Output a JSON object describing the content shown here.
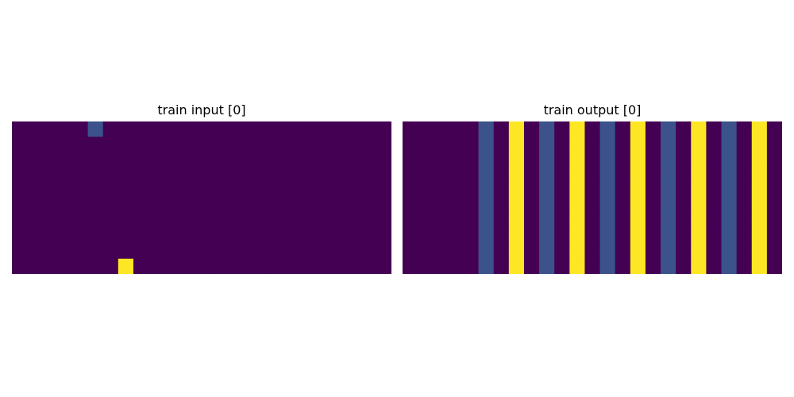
{
  "chart_data": [
    {
      "type": "heatmap",
      "title": "train input [0]",
      "rows": 10,
      "cols": 25,
      "background": 0,
      "cells": [
        {
          "row": 0,
          "col": 5,
          "value": 1
        },
        {
          "row": 9,
          "col": 7,
          "value": 2
        }
      ]
    },
    {
      "type": "heatmap",
      "title": "train output [0]",
      "rows": 10,
      "cols": 25,
      "background": 0,
      "column_values": [
        0,
        0,
        0,
        0,
        0,
        1,
        0,
        2,
        0,
        1,
        0,
        2,
        0,
        1,
        0,
        2,
        0,
        1,
        0,
        2,
        0,
        1,
        0,
        2,
        0
      ]
    }
  ],
  "colors": {
    "0": "#440154",
    "1": "#3b528b",
    "2": "#fde725"
  }
}
